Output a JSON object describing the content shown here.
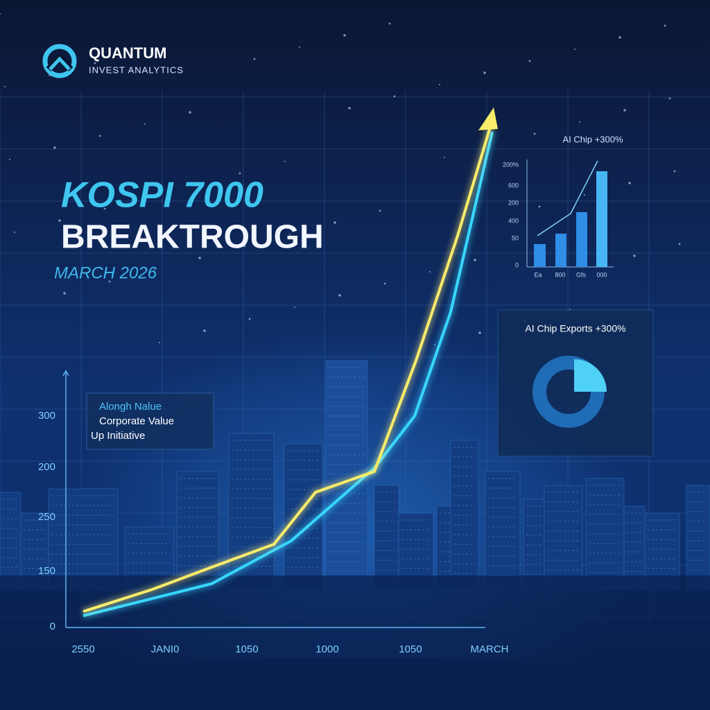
{
  "header": {
    "brand": "QUANTUM",
    "tagline": "INVEST ANALYTICS"
  },
  "headline": {
    "title": "KOSPI 7000",
    "subtitle": "BREAKTROUGH",
    "date": "MARCH 2026"
  },
  "main_chart": {
    "y_labels": [
      "300",
      "200",
      "250",
      "150",
      "0"
    ],
    "x_labels": [
      "2550",
      "JANI0",
      "1050",
      "1000",
      "1050",
      "MARCH"
    ],
    "annotation": [
      "Alongh Nalue",
      "Corporate Value",
      "Up Initiative"
    ]
  },
  "chip_chart": {
    "title": "AI Chip +300%",
    "y_labels": [
      "200%",
      "600",
      "200",
      "400",
      "50",
      "0"
    ],
    "x_labels": [
      "Ea",
      "800",
      "Gfs",
      "000"
    ]
  },
  "exports_panel": {
    "title": "AI Chip Exports +300%"
  }
}
